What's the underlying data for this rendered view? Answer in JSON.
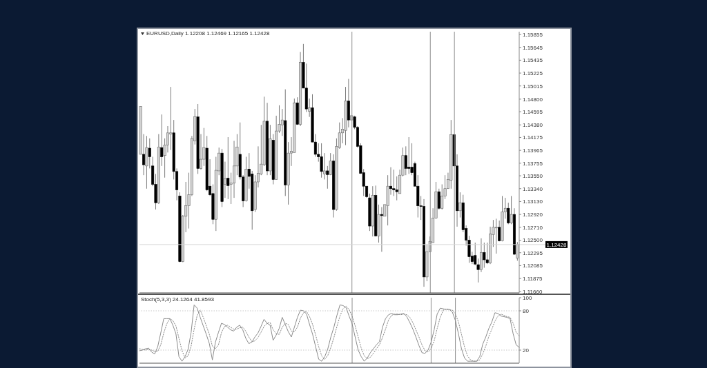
{
  "chart_data": [
    {
      "type": "candlestick",
      "title": "EURUSD,Daily 1.12208 1.12469 1.12165 1.12428",
      "categories": [
        null,
        null,
        null,
        null,
        null,
        null,
        null,
        null,
        null,
        null,
        null,
        null,
        null,
        null,
        null,
        null,
        null,
        null,
        null,
        null,
        null,
        null,
        null,
        null,
        null,
        null,
        null,
        null,
        null,
        null,
        null,
        null,
        null,
        null,
        null,
        null,
        null,
        null,
        null,
        null,
        null,
        null,
        null,
        null,
        null,
        null,
        null,
        null,
        null,
        null,
        null,
        null,
        null,
        null,
        null,
        null,
        null,
        null,
        null,
        null,
        null,
        null,
        null,
        null,
        null,
        null,
        null,
        null,
        null,
        null,
        null,
        null,
        null,
        null,
        null,
        null,
        null,
        null,
        null,
        null,
        null,
        null,
        null,
        null,
        null,
        null,
        null,
        null,
        null,
        null,
        null,
        null,
        null,
        null,
        null,
        null,
        null,
        null,
        null,
        null,
        null,
        null,
        null,
        null,
        null,
        null,
        null,
        null,
        null,
        null,
        null,
        null,
        null,
        null,
        null,
        null,
        null,
        null,
        null,
        null,
        null,
        null,
        null,
        null,
        null,
        null
      ],
      "ohlc": [
        [
          1.139,
          1.1468,
          1.139,
          1.1468
        ],
        [
          1.139,
          1.1423,
          1.1356,
          1.1373
        ],
        [
          1.1371,
          1.142,
          1.1334,
          1.1401
        ],
        [
          1.14,
          1.1416,
          1.1367,
          1.1386
        ],
        [
          1.1371,
          1.1386,
          1.1338,
          1.1341
        ],
        [
          1.1341,
          1.1358,
          1.13,
          1.1311
        ],
        [
          1.1311,
          1.1423,
          1.1309,
          1.1402
        ],
        [
          1.1401,
          1.1455,
          1.1371,
          1.1386
        ],
        [
          1.1388,
          1.1416,
          1.1352,
          1.1405
        ],
        [
          1.1405,
          1.1436,
          1.1393,
          1.1425
        ],
        [
          1.1423,
          1.15,
          1.1397,
          1.1425
        ],
        [
          1.1425,
          1.1446,
          1.1349,
          1.1362
        ],
        [
          1.1362,
          1.1367,
          1.1315,
          1.1332
        ],
        [
          1.1322,
          1.1328,
          1.1214,
          1.1215
        ],
        [
          1.1215,
          1.1291,
          1.1214,
          1.1289
        ],
        [
          1.1289,
          1.1345,
          1.1263,
          1.1306
        ],
        [
          1.1306,
          1.136,
          1.1269,
          1.1324
        ],
        [
          1.1324,
          1.142,
          1.1322,
          1.1416
        ],
        [
          1.1412,
          1.1464,
          1.1406,
          1.1451
        ],
        [
          1.1451,
          1.1472,
          1.1358,
          1.1367
        ],
        [
          1.1367,
          1.1423,
          1.1365,
          1.1382
        ],
        [
          1.1382,
          1.1433,
          1.1371,
          1.1401
        ],
        [
          1.14,
          1.142,
          1.133,
          1.1332
        ],
        [
          1.1338,
          1.1382,
          1.1322,
          1.1324
        ],
        [
          1.1326,
          1.1341,
          1.1276,
          1.1284
        ],
        [
          1.1284,
          1.1386,
          1.1265,
          1.1364
        ],
        [
          1.1363,
          1.1401,
          1.1356,
          1.1392
        ],
        [
          1.1392,
          1.1399,
          1.1304,
          1.1313
        ],
        [
          1.1341,
          1.1378,
          1.1319,
          1.135
        ],
        [
          1.1351,
          1.1418,
          1.1317,
          1.1339
        ],
        [
          1.1341,
          1.136,
          1.1309,
          1.1343
        ],
        [
          1.1343,
          1.1412,
          1.1319,
          1.1371
        ],
        [
          1.1371,
          1.1423,
          1.1356,
          1.1402
        ],
        [
          1.139,
          1.1442,
          1.1349,
          1.1353
        ],
        [
          1.1353,
          1.1356,
          1.1304,
          1.1314
        ],
        [
          1.1314,
          1.1386,
          1.1313,
          1.1366
        ],
        [
          1.1366,
          1.1392,
          1.1334,
          1.1354
        ],
        [
          1.1358,
          1.1363,
          1.1267,
          1.1298
        ],
        [
          1.13,
          1.1356,
          1.1296,
          1.1345
        ],
        [
          1.1345,
          1.1403,
          1.1336,
          1.1359
        ],
        [
          1.1358,
          1.1438,
          1.1356,
          1.1374
        ],
        [
          1.1373,
          1.1484,
          1.1371,
          1.1444
        ],
        [
          1.1444,
          1.1474,
          1.1356,
          1.1363
        ],
        [
          1.1363,
          1.1438,
          1.1356,
          1.1415
        ],
        [
          1.1413,
          1.1423,
          1.1341,
          1.1349
        ],
        [
          1.1349,
          1.1453,
          1.1349,
          1.1428
        ],
        [
          1.1428,
          1.147,
          1.1425,
          1.1439
        ],
        [
          1.1438,
          1.1464,
          1.142,
          1.1446
        ],
        [
          1.1445,
          1.1496,
          1.1322,
          1.134
        ],
        [
          1.134,
          1.141,
          1.1308,
          1.1392
        ],
        [
          1.1392,
          1.1418,
          1.1371,
          1.1395
        ],
        [
          1.1393,
          1.1481,
          1.1393,
          1.1474
        ],
        [
          1.1474,
          1.1483,
          1.1438,
          1.1439
        ],
        [
          1.1439,
          1.1557,
          1.1436,
          1.154
        ],
        [
          1.154,
          1.157,
          1.1498,
          1.1498
        ],
        [
          1.1498,
          1.1538,
          1.1459,
          1.1464
        ],
        [
          1.146,
          1.1481,
          1.1451,
          1.1466
        ],
        [
          1.1466,
          1.1488,
          1.141,
          1.141
        ],
        [
          1.141,
          1.1423,
          1.1386,
          1.139
        ],
        [
          1.139,
          1.1408,
          1.1378,
          1.1386
        ],
        [
          1.1386,
          1.1408,
          1.1352,
          1.1362
        ],
        [
          1.1358,
          1.1392,
          1.1349,
          1.1363
        ],
        [
          1.1363,
          1.1371,
          1.1334,
          1.1357
        ],
        [
          1.1357,
          1.1392,
          1.1356,
          1.1379
        ],
        [
          1.1379,
          1.139,
          1.1287,
          1.13
        ],
        [
          1.13,
          1.1416,
          1.1298,
          1.1403
        ],
        [
          1.1401,
          1.1442,
          1.1399,
          1.1425
        ],
        [
          1.1425,
          1.1449,
          1.1408,
          1.1431
        ],
        [
          1.1429,
          1.15,
          1.1405,
          1.1477
        ],
        [
          1.1477,
          1.1513,
          1.1434,
          1.1446
        ],
        [
          1.1446,
          1.1453,
          1.1446,
          1.1453
        ],
        [
          1.1451,
          1.1453,
          1.1431,
          1.1434
        ],
        [
          1.1434,
          1.1436,
          1.1401,
          1.1403
        ],
        [
          1.1404,
          1.1408,
          1.1358,
          1.1359
        ],
        [
          1.136,
          1.1366,
          1.1322,
          1.1338
        ],
        [
          1.1338,
          1.1338,
          1.1319,
          1.1321
        ],
        [
          1.1319,
          1.1326,
          1.1265,
          1.1273
        ],
        [
          1.1273,
          1.1338,
          1.1256,
          1.1323
        ],
        [
          1.1323,
          1.1339,
          1.1256,
          1.1257
        ],
        [
          1.1257,
          1.1308,
          1.1246,
          1.1292
        ],
        [
          1.1292,
          1.1304,
          1.1231,
          1.129
        ],
        [
          1.1289,
          1.1308,
          1.1289,
          1.1308
        ],
        [
          1.1306,
          1.1356,
          1.1274,
          1.1338
        ],
        [
          1.1338,
          1.1369,
          1.1324,
          1.1334
        ],
        [
          1.1334,
          1.1365,
          1.1322,
          1.1332
        ],
        [
          1.1332,
          1.1354,
          1.1315,
          1.1329
        ],
        [
          1.1326,
          1.1365,
          1.1326,
          1.1356
        ],
        [
          1.1356,
          1.1401,
          1.1354,
          1.1388
        ],
        [
          1.1388,
          1.1403,
          1.1356,
          1.1367
        ],
        [
          1.1369,
          1.1418,
          1.1358,
          1.1367
        ],
        [
          1.1369,
          1.1408,
          1.1356,
          1.136
        ],
        [
          1.1375,
          1.1378,
          1.1338,
          1.1338
        ],
        [
          1.1338,
          1.1356,
          1.1287,
          1.1306
        ],
        [
          1.1306,
          1.1322,
          1.1283,
          1.1305
        ],
        [
          1.1305,
          1.1317,
          1.1174,
          1.119
        ],
        [
          1.119,
          1.1243,
          1.1183,
          1.1231
        ],
        [
          1.1231,
          1.1256,
          1.1231,
          1.1248
        ],
        [
          1.1246,
          1.1302,
          1.1246,
          1.1286
        ],
        [
          1.1286,
          1.1345,
          1.1285,
          1.1329
        ],
        [
          1.1329,
          1.1334,
          1.13,
          1.1302
        ],
        [
          1.1302,
          1.1341,
          1.13,
          1.1322
        ],
        [
          1.1322,
          1.1356,
          1.1317,
          1.1334
        ],
        [
          1.1334,
          1.136,
          1.1334,
          1.1349
        ],
        [
          1.1348,
          1.1446,
          1.1334,
          1.1422
        ],
        [
          1.1422,
          1.1423,
          1.1371,
          1.1371
        ],
        [
          1.1371,
          1.139,
          1.1272,
          1.1298
        ],
        [
          1.1298,
          1.1328,
          1.1287,
          1.1311
        ],
        [
          1.1311,
          1.1324,
          1.1263,
          1.1267
        ],
        [
          1.1269,
          1.1274,
          1.1241,
          1.125
        ],
        [
          1.125,
          1.1257,
          1.1213,
          1.1223
        ],
        [
          1.1224,
          1.1231,
          1.1211,
          1.1215
        ],
        [
          1.1225,
          1.1246,
          1.1209,
          1.1211
        ],
        [
          1.121,
          1.122,
          1.1181,
          1.1202
        ],
        [
          1.1202,
          1.1253,
          1.1198,
          1.123
        ],
        [
          1.123,
          1.1246,
          1.1205,
          1.1218
        ],
        [
          1.1218,
          1.1246,
          1.1211,
          1.1213
        ],
        [
          1.1213,
          1.1272,
          1.1211,
          1.126
        ],
        [
          1.1259,
          1.1283,
          1.1239,
          1.1271
        ],
        [
          1.127,
          1.1285,
          1.1228,
          1.1271
        ],
        [
          1.1271,
          1.1282,
          1.1248,
          1.1249
        ],
        [
          1.1249,
          1.1322,
          1.1248,
          1.1296
        ],
        [
          1.1296,
          1.1319,
          1.1285,
          1.1302
        ],
        [
          1.1302,
          1.1311,
          1.1276,
          1.1278
        ],
        [
          1.1278,
          1.1322,
          1.1276,
          1.1292
        ],
        [
          1.1292,
          1.1302,
          1.1226,
          1.1227
        ],
        [
          1.12208,
          1.12469,
          1.12165,
          1.12428
        ]
      ],
      "ylim": [
        1.1164,
        1.159
      ],
      "yticks": [
        {
          "value": 1.1166,
          "label": "1.11660"
        },
        1.11875,
        1.12085,
        1.12295,
        {
          "value": 1.125,
          "label": "1.12500"
        },
        {
          "value": 1.1271,
          "label": "1.12710"
        },
        {
          "value": 1.1292,
          "label": "1.12920"
        },
        {
          "value": 1.1313,
          "label": "1.13130"
        },
        {
          "value": 1.1334,
          "label": "1.13340"
        },
        {
          "value": 1.1355,
          "label": "1.13550"
        },
        1.13755,
        1.13965,
        1.14175,
        {
          "value": 1.1438,
          "label": "1.14380"
        },
        1.14595,
        {
          "value": 1.148,
          "label": "1.14800"
        },
        1.15015,
        1.15225,
        1.15435,
        1.15645,
        1.15855
      ],
      "ref_lines": [
        {
          "axis": "y",
          "value": 1.12428,
          "label": "1.12428",
          "color": "#d6d6d6"
        }
      ],
      "tick_labels": "y"
    },
    {
      "type": "line",
      "title": "Stoch(5,3,3) 24.1264 41.8593",
      "categories": [
        null,
        null,
        null,
        null,
        null,
        null,
        null,
        null,
        null,
        null,
        null,
        null,
        null,
        null,
        null,
        null,
        null,
        null,
        null,
        null,
        null,
        null,
        null,
        null,
        null,
        null,
        null,
        null,
        null,
        null,
        null,
        null,
        null,
        null,
        null,
        null,
        null,
        null,
        null,
        null,
        null,
        null,
        null,
        null,
        null,
        null,
        null,
        null,
        null,
        null,
        null,
        null,
        null,
        null,
        null,
        null,
        null,
        null,
        null,
        null,
        null,
        null,
        null,
        null,
        null,
        null,
        null,
        null,
        null,
        null,
        null,
        null,
        null,
        null,
        null,
        null,
        null,
        null,
        null,
        null,
        null,
        null,
        null,
        null,
        null,
        null,
        null,
        null,
        null,
        null,
        null,
        null,
        null,
        null,
        null,
        null,
        null,
        null,
        null,
        null,
        null,
        null,
        null,
        null,
        null,
        null,
        null,
        null,
        null,
        null,
        null,
        null,
        null,
        null,
        null,
        null,
        null,
        null,
        null,
        null,
        null,
        null,
        null,
        null,
        null,
        null
      ],
      "series": [
        {
          "color": "#8a8a8a",
          "line_style": "solid",
          "values": [
            19,
            20,
            22,
            23,
            17,
            14,
            25,
            46,
            68,
            68,
            68,
            58,
            45,
            10,
            3,
            10,
            21,
            47,
            89,
            84,
            70,
            57,
            44,
            30,
            5,
            32,
            47,
            61,
            59,
            55,
            51,
            49,
            55,
            58,
            51,
            38,
            30,
            32,
            40,
            46,
            56,
            67,
            61,
            58,
            35,
            43,
            53,
            70,
            59,
            48,
            40,
            55,
            70,
            81,
            80,
            75,
            59,
            44,
            25,
            6,
            3,
            10,
            22,
            40,
            55,
            73,
            89,
            88,
            85,
            72,
            60,
            40,
            20,
            10,
            3,
            8,
            16,
            22,
            28,
            33,
            55,
            68,
            74,
            76,
            74,
            74,
            75,
            76,
            71,
            62,
            52,
            40,
            27,
            16,
            15,
            20,
            32,
            51,
            75,
            84,
            83,
            82,
            82,
            78,
            65,
            45,
            22,
            8,
            3,
            3,
            3,
            3,
            10,
            29,
            40,
            53,
            63,
            77,
            76,
            72,
            71,
            70,
            68,
            45,
            28,
            24.1264
          ]
        },
        {
          "color": "#8a8a8a",
          "line_style": "dotted",
          "values": [
            22,
            21,
            20,
            21,
            20,
            18,
            18,
            28,
            46,
            60,
            68,
            65,
            57,
            38,
            19,
            8,
            11,
            26,
            52,
            73,
            81,
            70,
            57,
            44,
            26,
            22,
            28,
            47,
            56,
            58,
            55,
            52,
            52,
            54,
            55,
            49,
            40,
            33,
            34,
            39,
            47,
            56,
            61,
            62,
            51,
            45,
            44,
            55,
            61,
            59,
            49,
            48,
            55,
            69,
            77,
            79,
            71,
            59,
            43,
            25,
            11,
            6,
            12,
            24,
            39,
            56,
            72,
            83,
            87,
            82,
            72,
            57,
            40,
            23,
            11,
            7,
            9,
            15,
            22,
            28,
            39,
            52,
            66,
            73,
            75,
            75,
            74,
            75,
            74,
            70,
            62,
            51,
            40,
            28,
            19,
            17,
            22,
            34,
            53,
            70,
            81,
            83,
            82,
            81,
            75,
            63,
            44,
            25,
            11,
            5,
            3,
            3,
            5,
            14,
            26,
            41,
            52,
            64,
            72,
            75,
            73,
            71,
            70,
            61,
            47,
            41.8593
          ]
        }
      ],
      "ylim": [
        0,
        100
      ],
      "yticks": [
        20,
        80,
        100
      ],
      "ref_lines": [
        {
          "axis": "y",
          "value": 80,
          "color": "#c8c8c8",
          "line_style": "dotted"
        },
        {
          "axis": "y",
          "value": 20,
          "color": "#c8c8c8",
          "line_style": "dotted"
        }
      ],
      "marker": "none",
      "tick_labels": "y"
    }
  ]
}
